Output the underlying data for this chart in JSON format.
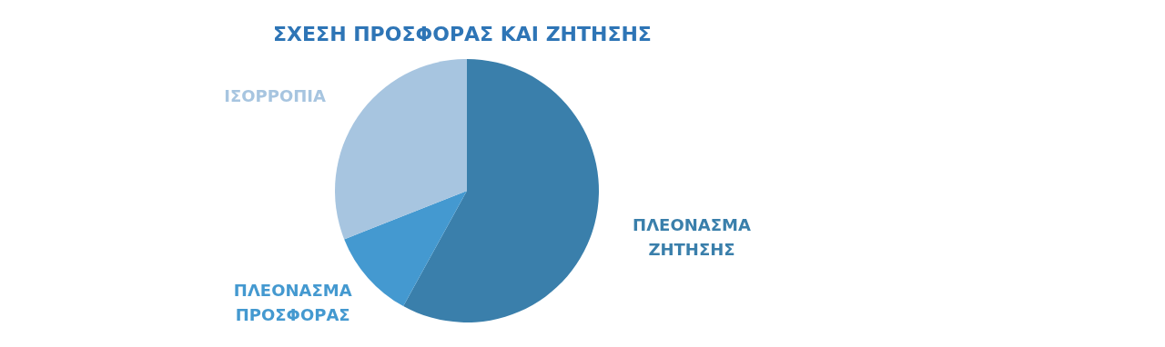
{
  "chart_data": {
    "type": "pie",
    "title": "ΣΧΕΣΗ ΠΡΟΣΦΟΡΑΣ ΚΑΙ ΖΗΤΗΣΗΣ",
    "categories": [
      "ΠΛΕΟΝΑΣΜΑ ΖΗΤΗΣΗΣ",
      "ΠΛΕΟΝΑΣΜΑ ΠΡΟΣΦΟΡΑΣ",
      "ΙΣΟΡΡΟΠΙΑ"
    ],
    "values": [
      58,
      11,
      31
    ],
    "colors": [
      "#3a7fab",
      "#4499d0",
      "#a7c5e0"
    ]
  }
}
